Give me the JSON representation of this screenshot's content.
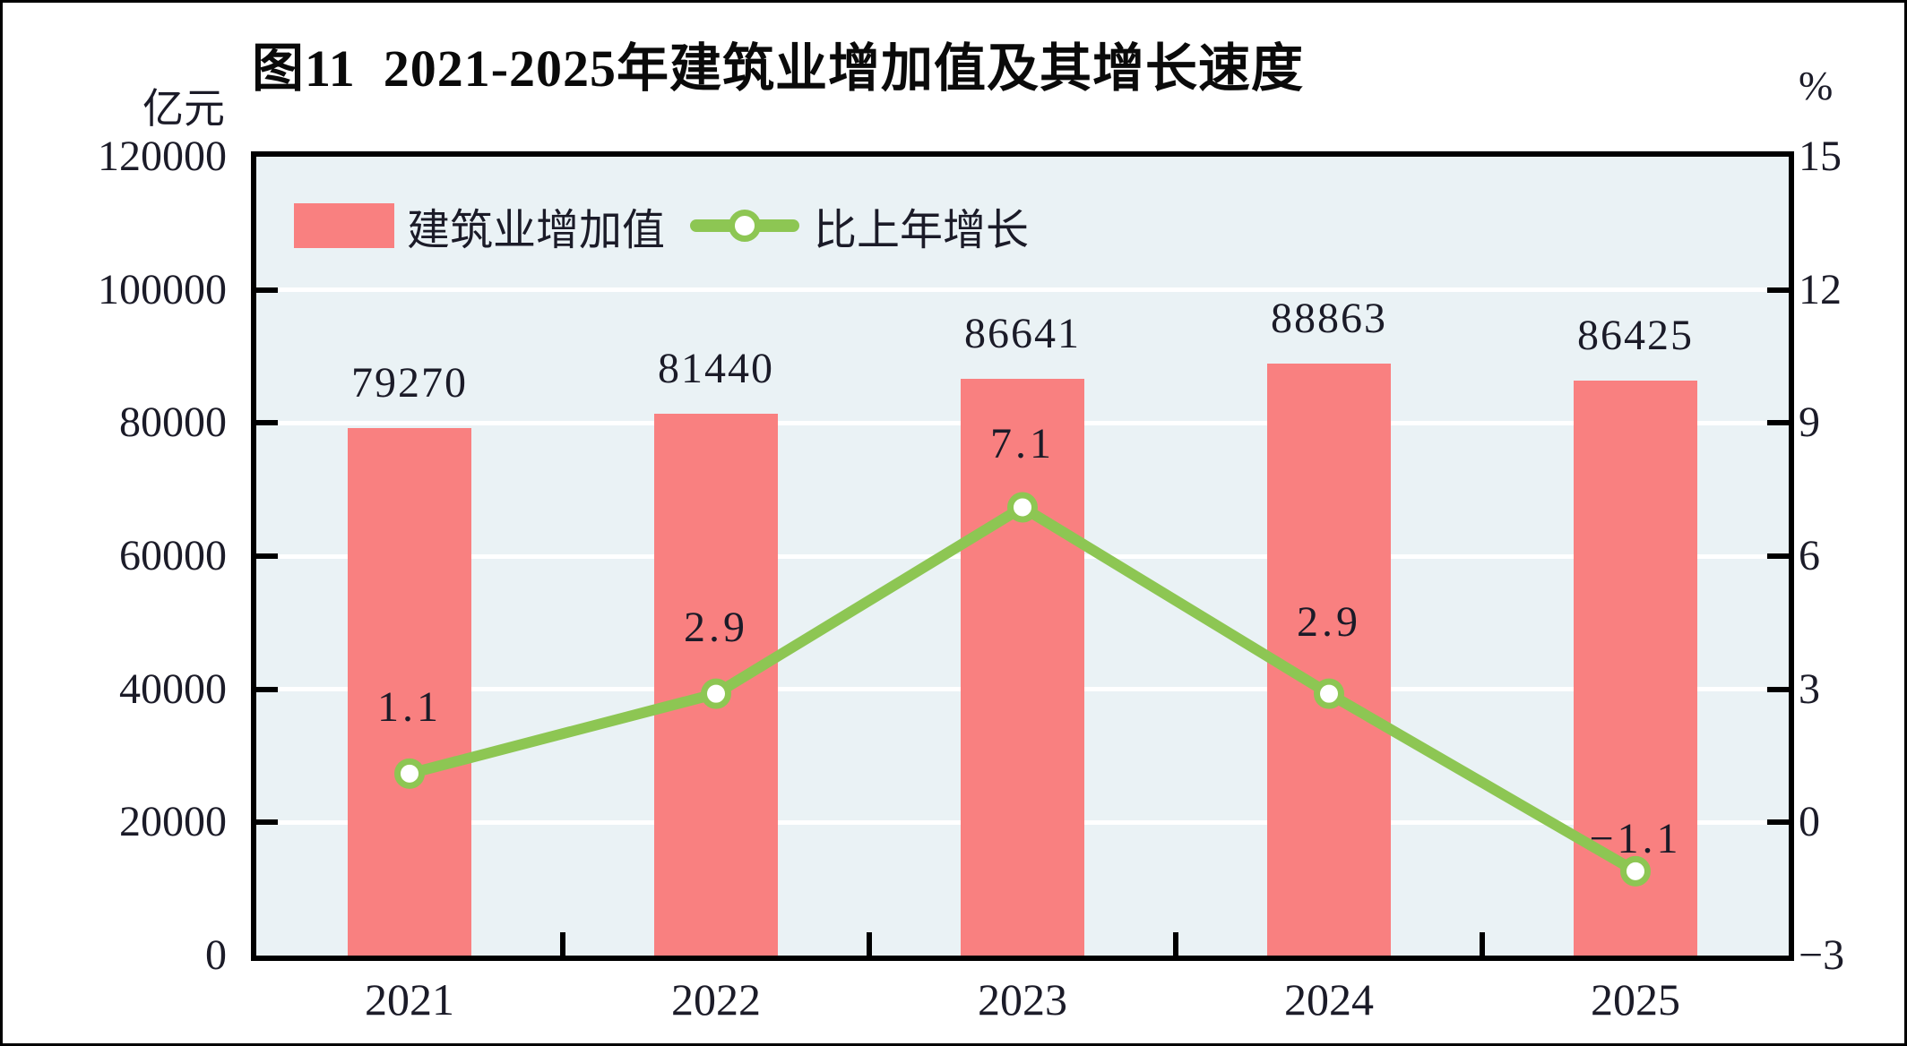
{
  "chart_data": {
    "type": "bar",
    "title": "图11  2021-2025年建筑业增加值及其增长速度",
    "categories": [
      "2021",
      "2022",
      "2023",
      "2024",
      "2025"
    ],
    "series": [
      {
        "name": "建筑业增加值",
        "type": "bar",
        "axis": "left",
        "values": [
          79270,
          81440,
          86641,
          88863,
          86425
        ],
        "labels": [
          "79270",
          "81440",
          "86641",
          "88863",
          "86425"
        ],
        "color": "#F98080"
      },
      {
        "name": "比上年增长",
        "type": "line",
        "axis": "right",
        "values": [
          1.1,
          2.9,
          7.1,
          2.9,
          -1.1
        ],
        "labels": [
          "1.1",
          "2.9",
          "7.1",
          "2.9",
          "−1.1"
        ],
        "color": "#8DC653",
        "marker": "circle-white-fill"
      }
    ],
    "left_axis": {
      "label": "亿元",
      "min": 0,
      "max": 120000,
      "step": 20000,
      "tick_labels": [
        "120000",
        "100000",
        "80000",
        "60000",
        "40000",
        "20000",
        "0"
      ]
    },
    "right_axis": {
      "label": "%",
      "min": -3,
      "max": 15,
      "step": 3,
      "tick_labels": [
        "15",
        "12",
        "9",
        "6",
        "3",
        "0",
        "−3"
      ]
    },
    "legend_position": "top-left-inside",
    "grid": "horizontal-white-lines",
    "plot_bg_color": "#EAF2F5",
    "grid_color": "#FFFFFF",
    "axis_color": "#000000",
    "text_color": "#1B1B28",
    "label_dy": [
      -74,
      -74,
      -70,
      -80,
      -36
    ]
  }
}
